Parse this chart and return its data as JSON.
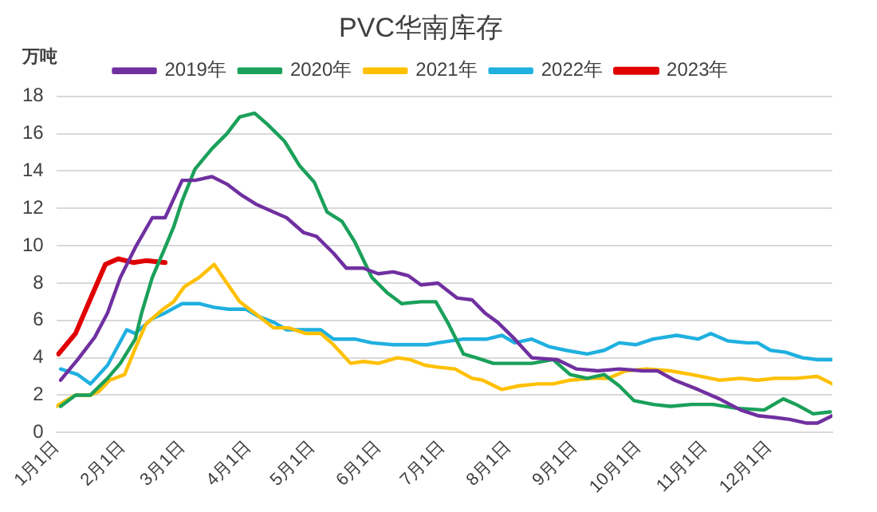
{
  "chart_data": {
    "type": "line",
    "title": "PVC华南库存",
    "ylabel": "万吨",
    "xlim": [
      "--01-01",
      "--12-31"
    ],
    "xticks": [
      {
        "value": "--01-01",
        "label": "1月1日"
      },
      {
        "value": "--02-01",
        "label": "2月1日"
      },
      {
        "value": "--03-01",
        "label": "3月1日"
      },
      {
        "value": "--04-01",
        "label": "4月1日"
      },
      {
        "value": "--05-01",
        "label": "5月1日"
      },
      {
        "value": "--06-01",
        "label": "6月1日"
      },
      {
        "value": "--07-01",
        "label": "7月1日"
      },
      {
        "value": "--08-01",
        "label": "8月1日"
      },
      {
        "value": "--09-01",
        "label": "9月1日"
      },
      {
        "value": "--10-01",
        "label": "10月1日"
      },
      {
        "value": "--11-01",
        "label": "11月1日"
      },
      {
        "value": "--12-01",
        "label": "12月1日"
      }
    ],
    "ylim": [
      0,
      18
    ],
    "yticks": [
      0,
      2,
      4,
      6,
      8,
      10,
      12,
      14,
      16,
      18
    ],
    "grid": "y",
    "legend": "top",
    "marker": "none",
    "line_style": "solid",
    "series": [
      {
        "name": "2019年",
        "color": "#7030a0",
        "x": [
          "--01-03",
          "--01-11",
          "--01-19",
          "--01-25",
          "--01-31",
          "--02-07",
          "--02-15",
          "--02-21",
          "--03-01",
          "--03-07",
          "--03-15",
          "--03-22",
          "--03-29",
          "--04-05",
          "--04-13",
          "--04-19",
          "--04-27",
          "--05-03",
          "--05-11",
          "--05-17",
          "--05-25",
          "--06-01",
          "--06-08",
          "--06-15",
          "--06-21",
          "--06-29",
          "--07-08",
          "--07-15",
          "--07-21",
          "--07-27",
          "--08-04",
          "--08-12",
          "--08-24",
          "--09-02",
          "--09-12",
          "--09-22",
          "--10-03",
          "--10-10",
          "--10-18",
          "--10-29",
          "--11-08",
          "--11-18",
          "--11-26",
          "--12-04",
          "--12-11",
          "--12-19",
          "--12-24",
          "--12-31"
        ],
        "values": [
          2.8,
          3.9,
          5.1,
          6.4,
          8.3,
          9.9,
          11.5,
          11.5,
          13.5,
          13.5,
          13.7,
          13.3,
          12.7,
          12.2,
          11.8,
          11.5,
          10.7,
          10.5,
          9.6,
          8.8,
          8.8,
          8.5,
          8.6,
          8.4,
          7.9,
          8.0,
          7.2,
          7.1,
          6.4,
          5.9,
          5.0,
          4.0,
          3.9,
          3.4,
          3.3,
          3.4,
          3.3,
          3.3,
          2.8,
          2.3,
          1.8,
          1.2,
          0.9,
          0.8,
          0.7,
          0.5,
          0.5,
          0.9
        ]
      },
      {
        "name": "2020年",
        "color": "#1aa05a",
        "x": [
          "--01-03",
          "--01-10",
          "--01-17",
          "--01-25",
          "--01-31",
          "--02-07",
          "--02-10",
          "--02-15",
          "--02-21",
          "--02-25",
          "--03-01",
          "--03-07",
          "--03-15",
          "--03-22",
          "--03-28",
          "--04-04",
          "--04-10",
          "--04-18",
          "--04-25",
          "--05-02",
          "--05-08",
          "--05-15",
          "--05-21",
          "--05-29",
          "--06-05",
          "--06-12",
          "--06-21",
          "--06-28",
          "--07-04",
          "--07-11",
          "--07-17",
          "--07-25",
          "--08-02",
          "--08-12",
          "--08-22",
          "--08-30",
          "--09-07",
          "--09-15",
          "--09-22",
          "--09-29",
          "--10-08",
          "--10-16",
          "--10-26",
          "--11-05",
          "--11-16",
          "--11-29",
          "--12-08",
          "--12-14",
          "--12-22",
          "--12-30"
        ],
        "values": [
          1.4,
          2.0,
          2.0,
          2.9,
          3.7,
          5.0,
          6.4,
          8.3,
          9.9,
          11.0,
          12.4,
          14.1,
          15.2,
          16.0,
          16.9,
          17.1,
          16.5,
          15.6,
          14.3,
          13.4,
          11.8,
          11.3,
          10.2,
          8.3,
          7.5,
          6.9,
          7.0,
          7.0,
          5.8,
          4.2,
          4.0,
          3.7,
          3.7,
          3.7,
          3.9,
          3.1,
          2.9,
          3.1,
          2.5,
          1.7,
          1.5,
          1.4,
          1.5,
          1.5,
          1.3,
          1.2,
          1.8,
          1.5,
          1.0,
          1.1
        ]
      },
      {
        "name": "2021年",
        "color": "#ffc000",
        "x": [
          "--01-01",
          "--01-10",
          "--01-17",
          "--01-21",
          "--01-26",
          "--02-02",
          "--02-07",
          "--02-12",
          "--02-20",
          "--02-25",
          "--03-02",
          "--03-09",
          "--03-16",
          "--03-22",
          "--03-28",
          "--04-04",
          "--04-13",
          "--04-20",
          "--04-28",
          "--05-05",
          "--05-11",
          "--05-19",
          "--05-25",
          "--06-01",
          "--06-10",
          "--06-16",
          "--06-23",
          "--06-29",
          "--07-07",
          "--07-15",
          "--07-20",
          "--07-29",
          "--08-06",
          "--08-15",
          "--08-22",
          "--08-30",
          "--09-09",
          "--09-17",
          "--09-25",
          "--10-05",
          "--10-16",
          "--10-26",
          "--11-08",
          "--11-18",
          "--11-26",
          "--12-04",
          "--12-14",
          "--12-24",
          "--12-31"
        ],
        "values": [
          1.4,
          2.0,
          2.0,
          2.2,
          2.8,
          3.1,
          4.5,
          5.8,
          6.6,
          7.0,
          7.8,
          8.3,
          9.0,
          8.0,
          7.0,
          6.4,
          5.6,
          5.6,
          5.3,
          5.3,
          4.7,
          3.7,
          3.8,
          3.7,
          4.0,
          3.9,
          3.6,
          3.5,
          3.4,
          2.9,
          2.8,
          2.3,
          2.5,
          2.6,
          2.6,
          2.8,
          2.9,
          2.9,
          3.3,
          3.4,
          3.3,
          3.1,
          2.8,
          2.9,
          2.8,
          2.9,
          2.9,
          3.0,
          2.6
        ]
      },
      {
        "name": "2022年",
        "color": "#1fb0e0",
        "x": [
          "--01-03",
          "--01-11",
          "--01-17",
          "--01-25",
          "--02-03",
          "--02-07",
          "--02-15",
          "--02-21",
          "--03-01",
          "--03-09",
          "--03-16",
          "--03-23",
          "--03-31",
          "--04-06",
          "--04-13",
          "--04-19",
          "--04-28",
          "--05-05",
          "--05-11",
          "--05-21",
          "--05-29",
          "--06-08",
          "--06-16",
          "--06-24",
          "--06-29",
          "--07-11",
          "--07-22",
          "--07-29",
          "--08-04",
          "--08-12",
          "--08-20",
          "--08-28",
          "--09-07",
          "--09-15",
          "--09-22",
          "--09-30",
          "--10-08",
          "--10-19",
          "--10-29",
          "--11-04",
          "--11-12",
          "--11-21",
          "--11-26",
          "--12-02",
          "--12-09",
          "--12-17",
          "--12-24",
          "--12-31"
        ],
        "values": [
          3.4,
          3.1,
          2.6,
          3.6,
          5.5,
          5.3,
          6.1,
          6.4,
          6.9,
          6.9,
          6.7,
          6.6,
          6.6,
          6.2,
          5.9,
          5.5,
          5.5,
          5.5,
          5.0,
          5.0,
          4.8,
          4.7,
          4.7,
          4.7,
          4.8,
          5.0,
          5.0,
          5.2,
          4.8,
          5.0,
          4.6,
          4.4,
          4.2,
          4.4,
          4.8,
          4.7,
          5.0,
          5.2,
          5.0,
          5.3,
          4.9,
          4.8,
          4.8,
          4.4,
          4.3,
          4.0,
          3.9,
          3.9
        ]
      },
      {
        "name": "2023年",
        "color": "#e00000",
        "x": [
          "--01-02",
          "--01-10",
          "--01-16",
          "--01-24",
          "--01-30",
          "--02-06",
          "--02-12",
          "--02-21"
        ],
        "values": [
          4.2,
          5.3,
          6.9,
          9.0,
          9.3,
          9.1,
          9.2,
          9.1
        ]
      }
    ]
  }
}
